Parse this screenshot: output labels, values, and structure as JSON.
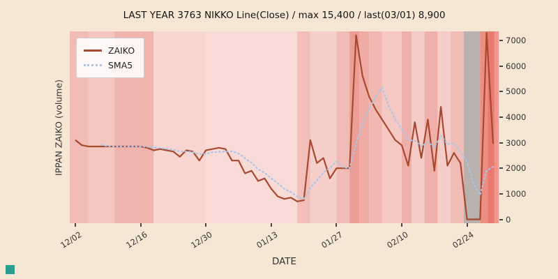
{
  "figure": {
    "background": "#f6e7d4",
    "plot_background": "#eae7e4",
    "logo_color": "#2a9d8f",
    "tick_color": "#444444"
  },
  "chart_data": {
    "type": "line",
    "title": "LAST YEAR 3763 NIKKO Line(Close) / max 15,400 / last(03/01) 8,900",
    "xlabel": "DATE",
    "ylabel": "IPPAN ZAIKO (volume)",
    "ylim": [
      -150,
      7350
    ],
    "yticks": [
      0,
      1000,
      2000,
      3000,
      4000,
      5000,
      6000,
      7000
    ],
    "xticks": [
      {
        "label": "12/02",
        "index": 0
      },
      {
        "label": "12/16",
        "index": 10
      },
      {
        "label": "12/30",
        "index": 20
      },
      {
        "label": "01/13",
        "index": 30
      },
      {
        "label": "01/27",
        "index": 40
      },
      {
        "label": "02/10",
        "index": 50
      },
      {
        "label": "02/24",
        "index": 60
      }
    ],
    "legend": {
      "position": "upper-left",
      "entries": [
        "ZAIKO",
        "SMA5"
      ]
    },
    "series": [
      {
        "name": "ZAIKO",
        "style": "solid",
        "color": "#a7492f",
        "values": [
          3100,
          2900,
          2850,
          2850,
          2850,
          2850,
          2850,
          2850,
          2850,
          2850,
          2850,
          2800,
          2700,
          2750,
          2700,
          2650,
          2450,
          2700,
          2650,
          2300,
          2700,
          2750,
          2800,
          2750,
          2300,
          2300,
          1800,
          1900,
          1500,
          1600,
          1200,
          900,
          800,
          850,
          700,
          750,
          3100,
          2200,
          2400,
          1600,
          2000,
          2000,
          2000,
          7200,
          5600,
          4800,
          4300,
          3900,
          3500,
          3100,
          2900,
          2100,
          3800,
          2400,
          3900,
          1900,
          4400,
          2100,
          2600,
          2200,
          0,
          0,
          0,
          7300,
          2950
        ]
      },
      {
        "name": "SMA5",
        "style": "dotted",
        "color": "#a8c6e9",
        "values": [
          null,
          null,
          null,
          null,
          2910,
          2860,
          2850,
          2850,
          2850,
          2850,
          2850,
          2840,
          2810,
          2790,
          2760,
          2720,
          2650,
          2650,
          2630,
          2550,
          2560,
          2620,
          2640,
          2660,
          2660,
          2580,
          2390,
          2210,
          1960,
          1820,
          1600,
          1420,
          1200,
          1070,
          890,
          800,
          1240,
          1520,
          1830,
          2010,
          2260,
          2040,
          2000,
          2960,
          3760,
          4320,
          4780,
          5160,
          4420,
          3920,
          3540,
          3100,
          3080,
          2860,
          3020,
          2820,
          3280,
          2940,
          2980,
          2640,
          2260,
          1380,
          960,
          1900,
          2050
        ]
      }
    ],
    "background_bands": [
      {
        "from": -1,
        "to": 2,
        "color": "#f1bcb6"
      },
      {
        "from": 2,
        "to": 6,
        "color": "#f4c6c0"
      },
      {
        "from": 6,
        "to": 12,
        "color": "#f0b4ae"
      },
      {
        "from": 12,
        "to": 20,
        "color": "#f7d6d2"
      },
      {
        "from": 20,
        "to": 34,
        "color": "#f8dad6"
      },
      {
        "from": 34,
        "to": 36,
        "color": "#f2beb8"
      },
      {
        "from": 36,
        "to": 40,
        "color": "#f6cfca"
      },
      {
        "from": 40,
        "to": 42,
        "color": "#f2bcb6"
      },
      {
        "from": 42,
        "to": 43.5,
        "color": "#eb9e95"
      },
      {
        "from": 43.5,
        "to": 45,
        "color": "#efaca4"
      },
      {
        "from": 45,
        "to": 47,
        "color": "#f1b8b2"
      },
      {
        "from": 47,
        "to": 50,
        "color": "#f5c8c3"
      },
      {
        "from": 50,
        "to": 51.5,
        "color": "#efb0a9"
      },
      {
        "from": 51.5,
        "to": 53.5,
        "color": "#f5ccc7"
      },
      {
        "from": 53.5,
        "to": 55.5,
        "color": "#efb0a9"
      },
      {
        "from": 55.5,
        "to": 57.5,
        "color": "#f5ccc7"
      },
      {
        "from": 57.5,
        "to": 59.5,
        "color": "#f1bcb6"
      },
      {
        "from": 59.5,
        "to": 62,
        "color": "#b8b1ad"
      },
      {
        "from": 62,
        "to": 63.2,
        "color": "#ee8d82"
      },
      {
        "from": 63.2,
        "to": 64.2,
        "color": "#e97a6e"
      },
      {
        "from": 64.2,
        "to": 66,
        "color": "#f0968c"
      }
    ]
  }
}
